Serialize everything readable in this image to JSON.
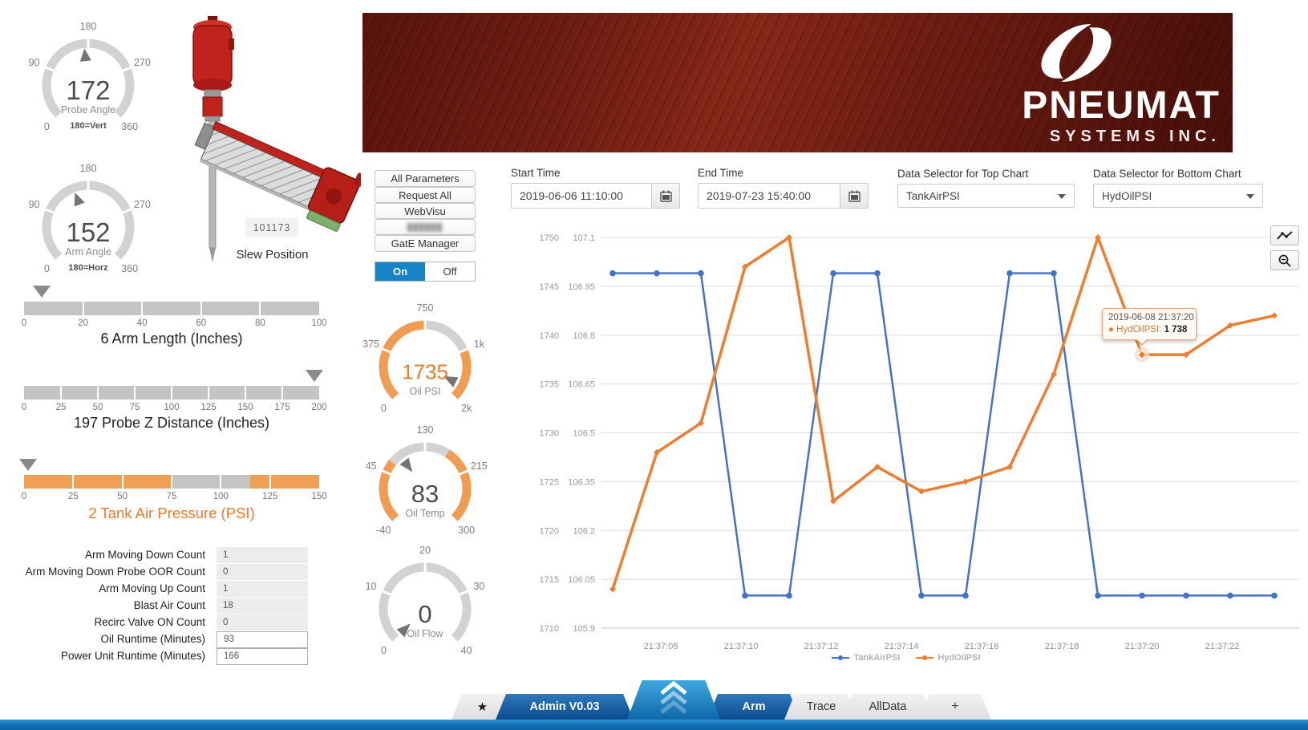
{
  "header": {
    "brand": "PNEUMAT",
    "brand_sub": "SYSTEMS INC."
  },
  "colors": {
    "accent_orange": "#e87c2a",
    "gauge_orange": "#f09c52",
    "gauge_gray": "#d2d2d2",
    "series_blue": "#4472c4",
    "series_orange": "#ed7d31",
    "on_blue": "#1583c5",
    "tab_blue": "#0b4c90",
    "bar_blue": "#0f6dae"
  },
  "gauges": [
    {
      "id": "probe-angle",
      "value": "172",
      "label": "Probe Angle",
      "sublabel": "180=Vert",
      "ticks": [
        "0",
        "90",
        "180",
        "270",
        "360"
      ],
      "fraction": 0.478,
      "segments": [
        [
          0,
          1,
          "gray"
        ]
      ],
      "value_color": "dark",
      "pointer": "out"
    },
    {
      "id": "arm-angle",
      "value": "152",
      "label": "Arm Angle",
      "sublabel": "180=Horz",
      "ticks": [
        "0",
        "90",
        "180",
        "270",
        "360"
      ],
      "fraction": 0.422,
      "segments": [
        [
          0,
          1,
          "gray"
        ]
      ],
      "value_color": "dark",
      "pointer": "out"
    },
    {
      "id": "oil-psi",
      "value": "1735",
      "label": "Oil PSI",
      "sublabel": "",
      "ticks": [
        "0",
        "375",
        "750",
        "1k",
        "2k"
      ],
      "fraction": 0.934,
      "segments": [
        [
          0,
          0.5,
          "orange"
        ],
        [
          0.5,
          0.75,
          "gray"
        ],
        [
          0.75,
          1,
          "orange"
        ]
      ],
      "value_color": "orange",
      "pointer": "in"
    },
    {
      "id": "oil-temp",
      "value": "83",
      "label": "Oil Temp",
      "sublabel": "",
      "ticks": [
        "-40",
        "45",
        "130",
        "215",
        "300"
      ],
      "fraction": 0.362,
      "segments": [
        [
          0,
          0.31,
          "orange"
        ],
        [
          0.31,
          0.62,
          "gray"
        ],
        [
          0.62,
          1,
          "orange"
        ]
      ],
      "value_color": "dark",
      "pointer": "in"
    },
    {
      "id": "oil-flow",
      "value": "0",
      "label": "Oil Flow",
      "sublabel": "",
      "ticks": [
        "0",
        "10",
        "20",
        "30",
        "40"
      ],
      "fraction": 0.0,
      "segments": [
        [
          0,
          1,
          "gray"
        ]
      ],
      "value_color": "dark",
      "pointer": "in"
    }
  ],
  "machine": {
    "slew_id": "101173",
    "slew_label": "Slew Position"
  },
  "sliders": [
    {
      "title": "6 Arm Length (Inches)",
      "ticks": [
        "0",
        "20",
        "40",
        "60",
        "80",
        "100"
      ],
      "fraction": 0.06,
      "segments": [
        [
          0,
          1,
          "gray"
        ]
      ],
      "accent": false
    },
    {
      "title": "197 Probe Z Distance (Inches)",
      "ticks": [
        "0",
        "25",
        "50",
        "75",
        "100",
        "125",
        "150",
        "175",
        "200"
      ],
      "fraction": 0.985,
      "segments": [
        [
          0,
          1,
          "gray"
        ]
      ],
      "accent": false
    },
    {
      "title": "2 Tank Air Pressure (PSI)",
      "ticks": [
        "0",
        "25",
        "50",
        "75",
        "100",
        "125",
        "150"
      ],
      "fraction": 0.013,
      "segments": [
        [
          0,
          0.5,
          "orange"
        ],
        [
          0.5,
          0.767,
          "gray"
        ],
        [
          0.767,
          1,
          "orange"
        ]
      ],
      "accent": true
    }
  ],
  "counters": [
    {
      "label": "Arm Moving Down Count",
      "value": "1",
      "kind": "readonly"
    },
    {
      "label": "Arm Moving Down Probe OOR Count",
      "value": "0",
      "kind": "readonly"
    },
    {
      "label": "Arm Moving Up Count",
      "value": "1",
      "kind": "readonly"
    },
    {
      "label": "Blast Air Count",
      "value": "18",
      "kind": "readonly"
    },
    {
      "label": "Recirc Valve ON Count",
      "value": "0",
      "kind": "readonly"
    },
    {
      "label": "Oil Runtime (Minutes)",
      "value": "93",
      "kind": "input"
    },
    {
      "label": "Power Unit Runtime (Minutes)",
      "value": "166",
      "kind": "input"
    }
  ],
  "control_panel": {
    "buttons": [
      {
        "label": "All Parameters"
      },
      {
        "label": "Request All"
      },
      {
        "label": "WebVisu"
      },
      {
        "label": "██████",
        "blurred": true
      },
      {
        "label": "GatE Manager"
      }
    ],
    "toggle": {
      "on_label": "On",
      "off_label": "Off",
      "active": "on"
    }
  },
  "chart_panel": {
    "start_time": {
      "label": "Start Time",
      "value": "2019-06-06 11:10:00"
    },
    "end_time": {
      "label": "End Time",
      "value": "2019-07-23 15:40:00"
    },
    "top_selector": {
      "label": "Data Selector for Top Chart",
      "value": "TankAirPSI"
    },
    "bottom_selector": {
      "label": "Data Selector for Bottom Chart",
      "value": "HydOilPSI"
    },
    "tooltip": {
      "line1": "2019-06-08 21:37:20",
      "series": "HydOilPSI:",
      "value": "1 738"
    }
  },
  "chart_data": {
    "type": "line",
    "title": "",
    "x_labels": [
      "21:37:08",
      "21:37:10",
      "21:37:12",
      "21:37:14",
      "21:37:16",
      "21:37:18",
      "21:37:20",
      "21:37:22"
    ],
    "x_seconds": [
      6.8,
      7.9,
      9.0,
      10.1,
      11.2,
      12.3,
      13.4,
      14.5,
      15.6,
      16.7,
      17.8,
      18.9,
      20.0,
      21.1,
      22.2,
      23.3
    ],
    "series": [
      {
        "name": "TankAirPSI",
        "color": "#4472c4",
        "axis": "inner",
        "marker": "circle",
        "values": [
          106.99,
          106.99,
          106.99,
          106.0,
          106.0,
          106.99,
          106.99,
          106.0,
          106.0,
          106.99,
          106.99,
          106.0,
          106.0,
          106.0,
          106.0,
          106.0
        ]
      },
      {
        "name": "HydOilPSI",
        "color": "#ed7d31",
        "axis": "outer",
        "marker": "diamond",
        "values": [
          1714,
          1728,
          1731,
          1747,
          1750,
          1723,
          1726.5,
          1724,
          1725,
          1726.5,
          1736,
          1750,
          1738,
          1738,
          1741,
          1742
        ]
      }
    ],
    "y_axis_outer": {
      "labels": [
        "1750",
        "1745",
        "1740",
        "1735",
        "1730",
        "1725",
        "1720",
        "1715",
        "1710"
      ],
      "min": 1710,
      "max": 1750
    },
    "y_axis_inner": {
      "labels": [
        "107.1",
        "106.95",
        "106.8",
        "106.65",
        "106.5",
        "106.35",
        "106.2",
        "106.05",
        "105.9"
      ],
      "min": 105.9,
      "max": 107.1
    },
    "legend": [
      "TankAirPSI",
      "HydOilPSI"
    ],
    "legend_position": "bottom",
    "grid": "horizontal",
    "highlight_index": 12
  },
  "tab_bar": {
    "tabs": [
      {
        "id": "favorites",
        "label": "★",
        "style": "gray",
        "icon": "star-icon"
      },
      {
        "id": "admin",
        "label": "Admin V0.03",
        "style": "blue"
      },
      {
        "id": "expand",
        "label": "",
        "style": "expand",
        "icon": "chevron-up-icon"
      },
      {
        "id": "arm",
        "label": "Arm",
        "style": "blue",
        "active": true
      },
      {
        "id": "trace",
        "label": "Trace",
        "style": "gray"
      },
      {
        "id": "alldata",
        "label": "AllData",
        "style": "gray"
      },
      {
        "id": "add",
        "label": "+",
        "style": "gray"
      }
    ]
  }
}
